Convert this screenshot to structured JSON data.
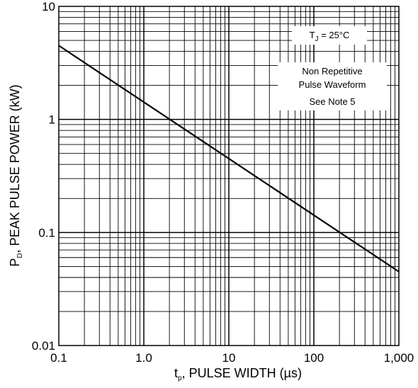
{
  "chart_data": {
    "type": "line",
    "x_scale": "log",
    "y_scale": "log",
    "xlim": [
      0.1,
      1000
    ],
    "ylim": [
      0.01,
      10
    ],
    "grid": true,
    "x_ticks": [
      "0.1",
      "1.0",
      "10",
      "100",
      "1,000"
    ],
    "y_ticks": [
      "10",
      "1",
      "0.1",
      "0.01"
    ],
    "xlabel": {
      "main": "t",
      "sub": "p",
      "rest": ", PULSE WIDTH (µs)"
    },
    "ylabel": {
      "main": "P",
      "sub": "D",
      "rest": ", PEAK PULSE POWER (kW)"
    },
    "series": [
      {
        "x": [
          0.1,
          1000
        ],
        "y": [
          4.5,
          0.045
        ]
      }
    ],
    "annotations": {
      "tj": {
        "main": "T",
        "sub": "J",
        "rest": " = 25°C"
      },
      "note_lines": [
        "Non Repetitive",
        "Pulse Waveform",
        "See Note 5"
      ]
    },
    "colors": {
      "line": "#000000",
      "grid": "#000000"
    }
  }
}
